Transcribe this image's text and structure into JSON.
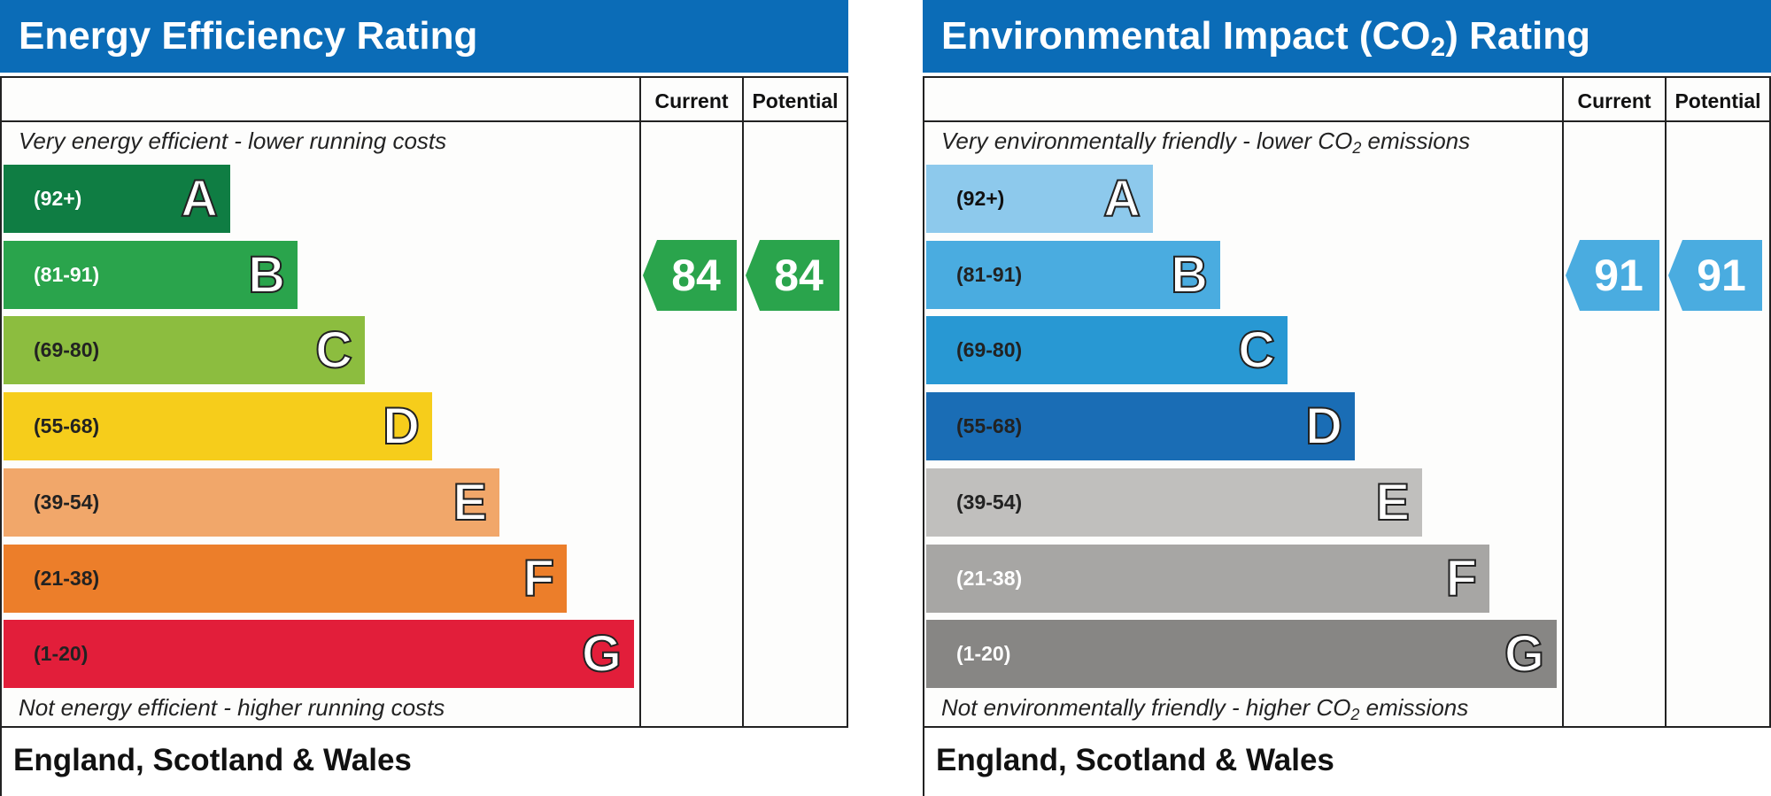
{
  "chart_data": [
    {
      "type": "bar",
      "title": "Energy Efficiency Rating",
      "columns": [
        "Current",
        "Potential"
      ],
      "top_caption": "Very energy efficient - lower running costs",
      "bottom_caption": "Not energy efficient - higher running costs",
      "categories": [
        "A",
        "B",
        "C",
        "D",
        "E",
        "F",
        "G"
      ],
      "ranges": [
        "(92+)",
        "(81-91)",
        "(69-80)",
        "(55-68)",
        "(39-54)",
        "(21-38)",
        "(1-20)"
      ],
      "colors": [
        "#0f7d43",
        "#2aa44c",
        "#8cbd3f",
        "#f6cd1b",
        "#f1a76a",
        "#ec7e2a",
        "#e21e3a"
      ],
      "range_text_colors": [
        "#ffffff",
        "#ffffff",
        "#222222",
        "#222222",
        "#222222",
        "#222222",
        "#222222"
      ],
      "current": 84,
      "potential": 84,
      "current_color": "#2aa44c",
      "potential_color": "#2aa44c",
      "footer": "England, Scotland & Wales"
    },
    {
      "type": "bar",
      "title_text": "Environmental Impact (CO",
      "title_sub": "2",
      "title_tail": ") Rating",
      "columns": [
        "Current",
        "Potential"
      ],
      "top_caption": "Very environmentally friendly - lower CO",
      "top_caption_sub": "2",
      "top_caption_tail": " emissions",
      "bottom_caption": "Not environmentally friendly - higher CO",
      "bottom_caption_sub": "2",
      "bottom_caption_tail": " emissions",
      "categories": [
        "A",
        "B",
        "C",
        "D",
        "E",
        "F",
        "G"
      ],
      "ranges": [
        "(92+)",
        "(81-91)",
        "(69-80)",
        "(55-68)",
        "(39-54)",
        "(21-38)",
        "(1-20)"
      ],
      "colors": [
        "#8dc9ec",
        "#4aace0",
        "#2898d3",
        "#1a6db5",
        "#c0bfbd",
        "#a7a6a4",
        "#878684"
      ],
      "range_text_colors": [
        "#111111",
        "#222222",
        "#222222",
        "#222222",
        "#222222",
        "#ffffff",
        "#ffffff"
      ],
      "current": 91,
      "potential": 91,
      "current_color": "#4aace0",
      "potential_color": "#4aace0",
      "footer": "England, Scotland & Wales"
    }
  ]
}
